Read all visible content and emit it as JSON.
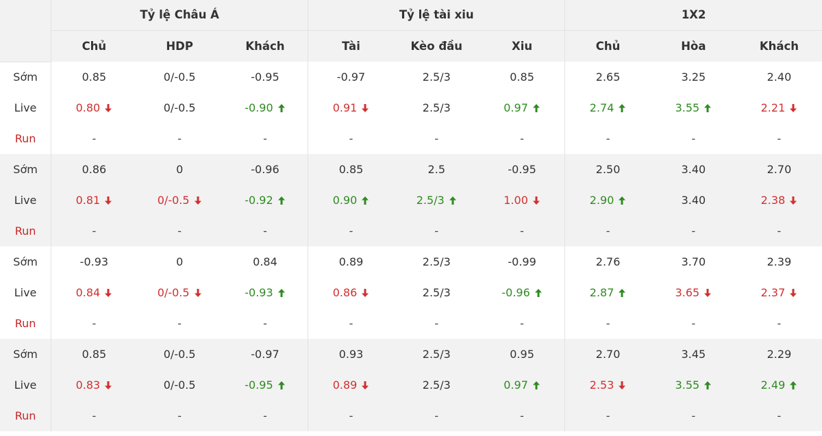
{
  "groups": [
    "Tỷ lệ Châu Á",
    "Tỷ lệ tài xiu",
    "1X2"
  ],
  "subheaders": [
    "Chủ",
    "HDP",
    "Khách",
    "Tài",
    "Kèo đầu",
    "Xiu",
    "Chủ",
    "Hòa",
    "Khách"
  ],
  "colors": {
    "up": "#2e8b20",
    "down": "#d32f2f",
    "run_label": "#c62828",
    "header_bg": "#f2f2f2"
  },
  "blocks": [
    {
      "rows": [
        {
          "label": "Sớm",
          "kind": "early",
          "cells": [
            {
              "v": "0.85"
            },
            {
              "v": "0/-0.5"
            },
            {
              "v": "-0.95"
            },
            {
              "v": "-0.97"
            },
            {
              "v": "2.5/3"
            },
            {
              "v": "0.85"
            },
            {
              "v": "2.65"
            },
            {
              "v": "3.25"
            },
            {
              "v": "2.40"
            }
          ]
        },
        {
          "label": "Live",
          "kind": "live",
          "cells": [
            {
              "v": "0.80",
              "d": "down"
            },
            {
              "v": "0/-0.5"
            },
            {
              "v": "-0.90",
              "d": "up"
            },
            {
              "v": "0.91",
              "d": "down"
            },
            {
              "v": "2.5/3"
            },
            {
              "v": "0.97",
              "d": "up"
            },
            {
              "v": "2.74",
              "d": "up"
            },
            {
              "v": "3.55",
              "d": "up"
            },
            {
              "v": "2.21",
              "d": "down"
            }
          ]
        },
        {
          "label": "Run",
          "kind": "run",
          "cells": [
            {
              "v": "-"
            },
            {
              "v": "-"
            },
            {
              "v": "-"
            },
            {
              "v": "-"
            },
            {
              "v": "-"
            },
            {
              "v": "-"
            },
            {
              "v": "-"
            },
            {
              "v": "-"
            },
            {
              "v": "-"
            }
          ]
        }
      ]
    },
    {
      "rows": [
        {
          "label": "Sớm",
          "kind": "early",
          "cells": [
            {
              "v": "0.86"
            },
            {
              "v": "0"
            },
            {
              "v": "-0.96"
            },
            {
              "v": "0.85"
            },
            {
              "v": "2.5"
            },
            {
              "v": "-0.95"
            },
            {
              "v": "2.50"
            },
            {
              "v": "3.40"
            },
            {
              "v": "2.70"
            }
          ]
        },
        {
          "label": "Live",
          "kind": "live",
          "cells": [
            {
              "v": "0.81",
              "d": "down"
            },
            {
              "v": "0/-0.5",
              "d": "down"
            },
            {
              "v": "-0.92",
              "d": "up"
            },
            {
              "v": "0.90",
              "d": "up"
            },
            {
              "v": "2.5/3",
              "d": "up"
            },
            {
              "v": "1.00",
              "d": "down"
            },
            {
              "v": "2.90",
              "d": "up"
            },
            {
              "v": "3.40"
            },
            {
              "v": "2.38",
              "d": "down"
            }
          ]
        },
        {
          "label": "Run",
          "kind": "run",
          "cells": [
            {
              "v": "-"
            },
            {
              "v": "-"
            },
            {
              "v": "-"
            },
            {
              "v": "-"
            },
            {
              "v": "-"
            },
            {
              "v": "-"
            },
            {
              "v": "-"
            },
            {
              "v": "-"
            },
            {
              "v": "-"
            }
          ]
        }
      ]
    },
    {
      "rows": [
        {
          "label": "Sớm",
          "kind": "early",
          "cells": [
            {
              "v": "-0.93"
            },
            {
              "v": "0"
            },
            {
              "v": "0.84"
            },
            {
              "v": "0.89"
            },
            {
              "v": "2.5/3"
            },
            {
              "v": "-0.99"
            },
            {
              "v": "2.76"
            },
            {
              "v": "3.70"
            },
            {
              "v": "2.39"
            }
          ]
        },
        {
          "label": "Live",
          "kind": "live",
          "cells": [
            {
              "v": "0.84",
              "d": "down"
            },
            {
              "v": "0/-0.5",
              "d": "down"
            },
            {
              "v": "-0.93",
              "d": "up"
            },
            {
              "v": "0.86",
              "d": "down"
            },
            {
              "v": "2.5/3"
            },
            {
              "v": "-0.96",
              "d": "up"
            },
            {
              "v": "2.87",
              "d": "up"
            },
            {
              "v": "3.65",
              "d": "down"
            },
            {
              "v": "2.37",
              "d": "down"
            }
          ]
        },
        {
          "label": "Run",
          "kind": "run",
          "cells": [
            {
              "v": "-"
            },
            {
              "v": "-"
            },
            {
              "v": "-"
            },
            {
              "v": "-"
            },
            {
              "v": "-"
            },
            {
              "v": "-"
            },
            {
              "v": "-"
            },
            {
              "v": "-"
            },
            {
              "v": "-"
            }
          ]
        }
      ]
    },
    {
      "rows": [
        {
          "label": "Sớm",
          "kind": "early",
          "cells": [
            {
              "v": "0.85"
            },
            {
              "v": "0/-0.5"
            },
            {
              "v": "-0.97"
            },
            {
              "v": "0.93"
            },
            {
              "v": "2.5/3"
            },
            {
              "v": "0.95"
            },
            {
              "v": "2.70"
            },
            {
              "v": "3.45"
            },
            {
              "v": "2.29"
            }
          ]
        },
        {
          "label": "Live",
          "kind": "live",
          "cells": [
            {
              "v": "0.83",
              "d": "down"
            },
            {
              "v": "0/-0.5"
            },
            {
              "v": "-0.95",
              "d": "up"
            },
            {
              "v": "0.89",
              "d": "down"
            },
            {
              "v": "2.5/3"
            },
            {
              "v": "0.97",
              "d": "up"
            },
            {
              "v": "2.53",
              "d": "down"
            },
            {
              "v": "3.55",
              "d": "up"
            },
            {
              "v": "2.49",
              "d": "up"
            }
          ]
        },
        {
          "label": "Run",
          "kind": "run",
          "cells": [
            {
              "v": "-"
            },
            {
              "v": "-"
            },
            {
              "v": "-"
            },
            {
              "v": "-"
            },
            {
              "v": "-"
            },
            {
              "v": "-"
            },
            {
              "v": "-"
            },
            {
              "v": "-"
            },
            {
              "v": "-"
            }
          ]
        }
      ]
    }
  ]
}
